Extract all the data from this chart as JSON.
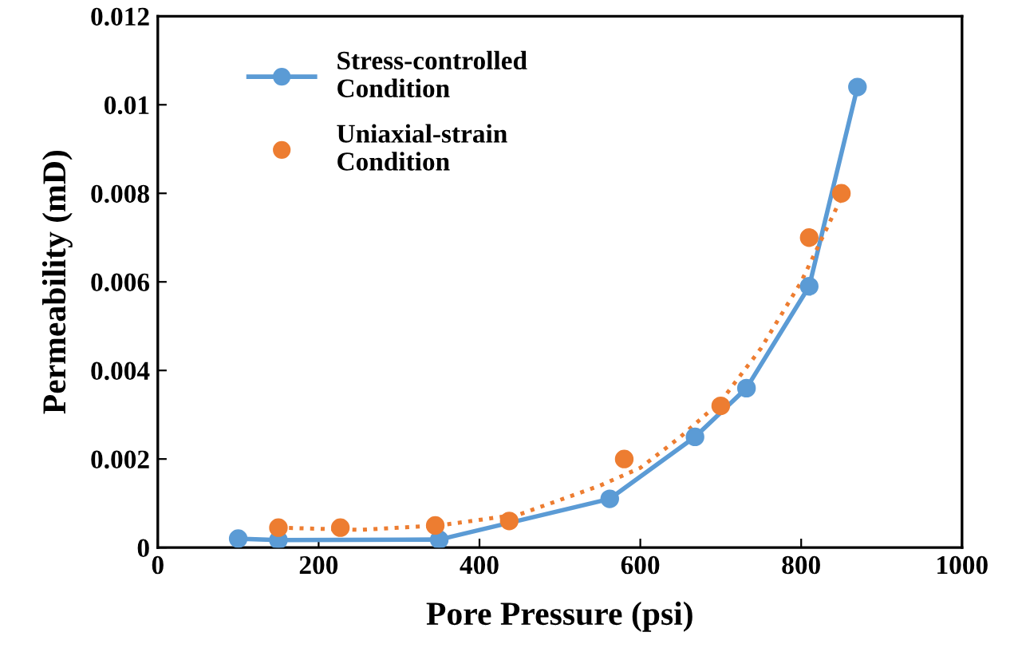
{
  "chart_data": {
    "type": "line",
    "xlabel": "Pore Pressure (psi)",
    "ylabel": "Permeability (mD)",
    "xlim": [
      0,
      1000
    ],
    "xticks": [
      0,
      200,
      400,
      600,
      800,
      1000
    ],
    "ylim": [
      0,
      0.012
    ],
    "yticks": [
      0,
      0.002,
      0.004,
      0.006,
      0.008,
      0.01,
      0.012
    ],
    "grid": false,
    "legend": "top left",
    "series": [
      {
        "name": "Stress-controlled\nCondition",
        "color": "#5b9bd5",
        "marker": "circle",
        "line_style": "solid",
        "x": [
          100,
          150,
          350,
          562,
          668,
          732,
          810,
          870
        ],
        "values": [
          0.0002,
          0.00017,
          0.00018,
          0.0011,
          0.0025,
          0.0036,
          0.0059,
          0.0104
        ]
      },
      {
        "name": "Uniaxial-strain\nCondition",
        "type": "scatter",
        "color": "#ed7d31",
        "marker": "circle",
        "x": [
          150,
          227,
          345,
          437,
          580,
          700,
          810,
          850
        ],
        "values": [
          0.00045,
          0.00045,
          0.0005,
          0.0006,
          0.002,
          0.0032,
          0.007,
          0.008
        ]
      },
      {
        "type": "line",
        "color": "#ed7d31",
        "marker": "none",
        "line_style": "dotted",
        "x": [
          150,
          250,
          350,
          450,
          550,
          600,
          650,
          700,
          750,
          800,
          850
        ],
        "values": [
          0.00045,
          0.0004,
          0.0005,
          0.00075,
          0.0014,
          0.0018,
          0.0025,
          0.0033,
          0.0045,
          0.006,
          0.0079
        ]
      }
    ]
  }
}
